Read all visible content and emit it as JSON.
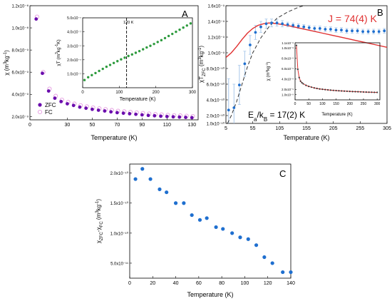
{
  "chart_data": [
    {
      "panel": "A",
      "type": "scatter",
      "xlabel": "Temperature (K)",
      "ylabel": "χ (m³kg⁻¹)",
      "xlim": [
        0,
        135
      ],
      "ylim": [
        1.7e-09,
        1.2e-08
      ],
      "xticks": [
        0,
        30,
        50,
        70,
        90,
        110,
        130
      ],
      "yticks": [
        2e-09,
        4e-09,
        6e-09,
        8e-09,
        1e-08,
        1.2e-08
      ],
      "ytick_labels": [
        "2.0x10⁻⁹",
        "4.0x10⁻⁹",
        "6.0x10⁻⁹",
        "8.0x10⁻⁹",
        "1.0x10⁻⁸",
        "1.2x10⁻⁸"
      ],
      "legend": "left",
      "colors": {
        "zfc": "#6a0dad",
        "fc": "#e59be0"
      },
      "series": [
        {
          "name": "ZFC",
          "marker": "filled",
          "x": [
            5,
            10,
            15,
            20,
            25,
            30,
            35,
            40,
            45,
            50,
            55,
            60,
            65,
            70,
            75,
            80,
            85,
            90,
            95,
            100,
            105,
            110,
            115,
            120,
            125,
            130
          ],
          "values": [
            1.08e-08,
            5.9e-09,
            4.3e-09,
            3.65e-09,
            3.35e-09,
            3.15e-09,
            3e-09,
            2.85e-09,
            2.75e-09,
            2.65e-09,
            2.57e-09,
            2.5e-09,
            2.42e-09,
            2.35e-09,
            2.3e-09,
            2.25e-09,
            2.2e-09,
            2.15e-09,
            2.1e-09,
            2.07e-09,
            2.03e-09,
            2e-09,
            1.97e-09,
            1.95e-09,
            1.92e-09,
            1.9e-09
          ]
        },
        {
          "name": "FC",
          "marker": "open",
          "x": [
            5,
            10,
            15,
            20,
            25,
            30,
            35,
            40,
            45,
            50,
            55,
            60,
            65,
            70,
            75,
            80,
            85,
            90,
            95,
            100,
            105,
            110,
            115,
            120,
            125,
            130
          ],
          "values": [
            1.1e-08,
            6e-09,
            4.5e-09,
            3.85e-09,
            3.5e-09,
            3.3e-09,
            3.15e-09,
            3e-09,
            2.9e-09,
            2.8e-09,
            2.72e-09,
            2.65e-09,
            2.57e-09,
            2.5e-09,
            2.45e-09,
            2.4e-09,
            2.35e-09,
            2.3e-09,
            2.25e-09,
            2.2e-09,
            2.17e-09,
            2.13e-09,
            2.1e-09,
            2.08e-09,
            2.05e-09,
            2.02e-09
          ]
        }
      ],
      "inset": {
        "type": "scatter",
        "xlabel": "Temperature (K)",
        "ylabel": "χT (m³kg⁻¹K)",
        "xlim": [
          0,
          300
        ],
        "ylim": [
          0,
          5e-07
        ],
        "xticks": [
          0,
          100,
          200,
          300
        ],
        "yticks": [
          1e-07,
          2e-07,
          3e-07,
          4e-07,
          5e-07
        ],
        "ytick_labels": [
          "1.0x10⁻⁷",
          "2.0x10⁻⁷",
          "3.0x10⁻⁷",
          "4.0x10⁻⁷",
          "5.0x10⁻⁷"
        ],
        "marker_color": "#2e9b3e",
        "vline": {
          "x": 120,
          "label": "120 K"
        },
        "x": [
          5,
          15,
          25,
          35,
          45,
          55,
          65,
          75,
          85,
          95,
          105,
          115,
          125,
          135,
          145,
          155,
          165,
          175,
          185,
          195,
          205,
          215,
          225,
          235,
          245,
          255,
          265,
          275,
          285,
          295
        ],
        "values": [
          5.5e-08,
          7.5e-08,
          9e-08,
          1.05e-07,
          1.2e-07,
          1.35e-07,
          1.5e-07,
          1.63e-07,
          1.77e-07,
          1.9e-07,
          2.03e-07,
          2.15e-07,
          2.27e-07,
          2.38e-07,
          2.5e-07,
          2.62e-07,
          2.75e-07,
          2.88e-07,
          3e-07,
          3.13e-07,
          3.27e-07,
          3.4e-07,
          3.55e-07,
          3.7e-07,
          3.85e-07,
          4e-07,
          4.15e-07,
          4.3e-07,
          4.45e-07,
          4.6e-07
        ]
      }
    },
    {
      "panel": "B",
      "type": "scatter",
      "xlabel": "Temperature (K)",
      "ylabel": "χT₍ZFC₎ (m³kg⁻¹)",
      "xlim": [
        5,
        305
      ],
      "ylim": [
        1e-10,
        1.6e-09
      ],
      "xticks": [
        5,
        55,
        105,
        155,
        205,
        255,
        305
      ],
      "yticks": [
        1e-10,
        2e-10,
        4e-10,
        6e-10,
        8e-10,
        1e-09,
        1.2e-09,
        1.4e-09,
        1.6e-09
      ],
      "ytick_labels": [
        "1.0x10⁻¹⁰",
        "2.0x10⁻¹⁰",
        "4.0x10⁻¹⁰",
        "6.0x10⁻¹⁰",
        "8.0x10⁻¹⁰",
        "1.0x10⁻⁹",
        "1.2x10⁻⁹",
        "1.4x10⁻⁹",
        "1.6x10⁻⁹"
      ],
      "annotations": [
        "J = 74(4) K",
        "Eₐ/k_B = 17(2) K"
      ],
      "colors": {
        "data": "#1f6fcf",
        "fit": "#e03030",
        "error": "#a8c8ea",
        "dashed": "#333333"
      },
      "x": [
        10,
        20,
        30,
        40,
        50,
        60,
        70,
        80,
        90,
        100,
        110,
        120,
        130,
        140,
        150,
        160,
        170,
        180,
        190,
        200,
        210,
        220,
        230,
        240,
        250,
        260,
        270,
        280,
        290,
        300
      ],
      "values": [
        2.7e-10,
        3e-10,
        5.9e-10,
        8.6e-10,
        1.1e-09,
        1.26e-09,
        1.33e-09,
        1.37e-09,
        1.38e-09,
        1.38e-09,
        1.37e-09,
        1.36e-09,
        1.35e-09,
        1.34e-09,
        1.33e-09,
        1.32e-09,
        1.31e-09,
        1.31e-09,
        1.3e-09,
        1.3e-09,
        1.29e-09,
        1.29e-09,
        1.28e-09,
        1.28e-09,
        1.28e-09,
        1.27e-09,
        1.27e-09,
        1.27e-09,
        1.27e-09,
        1.28e-09
      ],
      "errors": [
        4e-10,
        3e-10,
        2.5e-10,
        1.6e-10,
        1.2e-10,
        9e-11,
        7e-11,
        6e-11,
        5e-11,
        4e-11,
        4e-11,
        3e-11,
        3e-11,
        3e-11,
        3e-11,
        3e-11,
        3e-11,
        3e-11,
        3e-11,
        3e-11,
        3e-11,
        3e-11,
        3e-11,
        3e-11,
        3e-11,
        3e-11,
        3e-11,
        3e-11,
        3e-11,
        3e-11
      ],
      "fit_x": [
        5,
        15,
        25,
        35,
        45,
        55,
        65,
        75,
        85,
        95,
        105,
        125,
        145,
        165,
        185,
        205,
        225,
        245,
        265,
        285,
        305
      ],
      "fit_values": [
        9.4e-10,
        1e-09,
        1.08e-09,
        1.17e-09,
        1.25e-09,
        1.31e-09,
        1.35e-09,
        1.37e-09,
        1.38e-09,
        1.375e-09,
        1.365e-09,
        1.34e-09,
        1.31e-09,
        1.28e-09,
        1.25e-09,
        1.22e-09,
        1.19e-09,
        1.16e-09,
        1.13e-09,
        1.1e-09,
        1.07e-09
      ],
      "dashed_x": [
        8,
        15,
        25,
        35,
        45,
        55,
        70,
        85,
        100,
        120,
        140,
        160
      ],
      "dashed_values": [
        1e-10,
        2e-10,
        3.8e-10,
        6e-10,
        8.2e-10,
        1e-09,
        1.19e-09,
        1.33e-09,
        1.44e-09,
        1.52e-09,
        1.58e-09,
        1.62e-09
      ],
      "inset": {
        "type": "scatter",
        "xlabel": "Temperature (K)",
        "ylabel": "χ (m³kg⁻¹)",
        "xlim": [
          0,
          310
        ],
        "ylim": [
          0,
          1.1e-08
        ],
        "xticks": [
          0,
          50,
          100,
          150,
          200,
          250,
          300
        ],
        "yticks": [
          1e-09,
          2e-09,
          4e-09,
          6e-09,
          8e-09,
          1e-08,
          1.1e-08
        ],
        "ytick_labels": [
          "1.0x10⁻⁹",
          "2.0x10⁻⁹",
          "4.0x10⁻⁹",
          "6.0x10⁻⁹",
          "8.0x10⁻⁹",
          "1.0x10⁻⁸",
          "1.1x10⁻⁸"
        ],
        "marker_color": "#3a3a3a",
        "fit_color": "#e03030",
        "x": [
          5,
          10,
          15,
          20,
          25,
          30,
          40,
          50,
          60,
          70,
          80,
          90,
          100,
          110,
          120,
          130,
          140,
          150,
          160,
          170,
          180,
          190,
          200,
          210,
          220,
          230,
          240,
          250,
          260,
          270,
          280,
          290,
          300
        ],
        "values": [
          1.05e-08,
          5.9e-09,
          4.3e-09,
          3.6e-09,
          3.3e-09,
          3.1e-09,
          2.8e-09,
          2.6e-09,
          2.45e-09,
          2.3e-09,
          2.2e-09,
          2.1e-09,
          2.05e-09,
          1.98e-09,
          1.92e-09,
          1.87e-09,
          1.83e-09,
          1.79e-09,
          1.75e-09,
          1.72e-09,
          1.69e-09,
          1.66e-09,
          1.63e-09,
          1.6e-09,
          1.58e-09,
          1.56e-09,
          1.54e-09,
          1.52e-09,
          1.5e-09,
          1.48e-09,
          1.47e-09,
          1.45e-09,
          1.44e-09
        ]
      }
    },
    {
      "panel": "C",
      "type": "scatter",
      "xlabel": "Temperature (K)",
      "ylabel": "χZFC-χFC (m³kg⁻¹)",
      "xlim": [
        0,
        140
      ],
      "ylim": [
        2.5e-11,
        2.15e-10
      ],
      "xticks": [
        0,
        20,
        40,
        60,
        80,
        100,
        120,
        140
      ],
      "yticks": [
        5e-11,
        1e-10,
        1.5e-10,
        2e-10
      ],
      "ytick_labels": [
        "5.0x10⁻¹¹",
        "1.0x10⁻¹⁰",
        "1.5x10⁻¹⁰",
        "2.0x10⁻¹⁰"
      ],
      "marker_color": "#1f6fcf",
      "x": [
        5,
        11,
        18,
        26,
        32,
        40,
        47,
        54,
        61,
        67,
        75,
        81,
        89,
        96,
        103,
        110,
        117,
        124,
        133,
        140
      ],
      "values": [
        1.9e-10,
        2.07e-10,
        1.9e-10,
        1.73e-10,
        1.68e-10,
        1.5e-10,
        1.5e-10,
        1.3e-10,
        1.22e-10,
        1.25e-10,
        1.1e-10,
        1.07e-10,
        1e-10,
        9.3e-11,
        9e-11,
        8e-11,
        6e-11,
        5e-11,
        3.5e-11,
        3.5e-11
      ]
    }
  ],
  "panel_labels": {
    "a": "A",
    "b": "B",
    "c": "C"
  },
  "legend_labels": {
    "zfc": "ZFC",
    "fc": "FC"
  },
  "labels": {
    "a_xlabel": "Temperature (K)",
    "a_inset_xlabel": "Temperature (K)",
    "a_inset_vline": "120 K",
    "b_xlabel": "Temperature (K)",
    "b_inset_xlabel": "Temperature (K)",
    "b_j": "J = 74(4) K",
    "b_ea": "Eₐ/k_B = 17(2) K",
    "c_xlabel": "Temperature (K)"
  }
}
